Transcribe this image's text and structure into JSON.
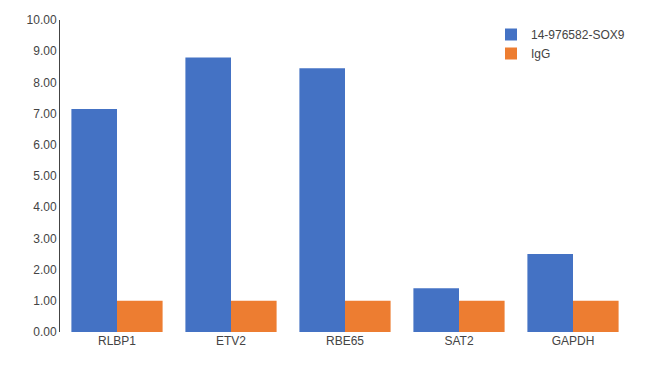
{
  "chart_data": {
    "type": "bar",
    "categories": [
      "RLBP1",
      "ETV2",
      "RBE65",
      "SAT2",
      "GAPDH"
    ],
    "series": [
      {
        "name": "14-976582-SOX9",
        "color": "#4472C4",
        "values": [
          7.15,
          8.8,
          8.45,
          1.4,
          2.5
        ]
      },
      {
        "name": "IgG",
        "color": "#ED7D31",
        "values": [
          1.0,
          1.0,
          1.0,
          1.0,
          1.0
        ]
      }
    ],
    "ylim": [
      0,
      10.0
    ],
    "yticks": [
      {
        "value": 0,
        "label": "0.00"
      },
      {
        "value": 1,
        "label": "1.00"
      },
      {
        "value": 2,
        "label": "2.00"
      },
      {
        "value": 3,
        "label": "3.00"
      },
      {
        "value": 4,
        "label": "4.00"
      },
      {
        "value": 5,
        "label": "5.00"
      },
      {
        "value": 6,
        "label": "6.00"
      },
      {
        "value": 7,
        "label": "7.00"
      },
      {
        "value": 8,
        "label": "8.00"
      },
      {
        "value": 9,
        "label": "9.00"
      },
      {
        "value": 10,
        "label": "10.00"
      }
    ],
    "grid": false,
    "legend": "upper right"
  }
}
